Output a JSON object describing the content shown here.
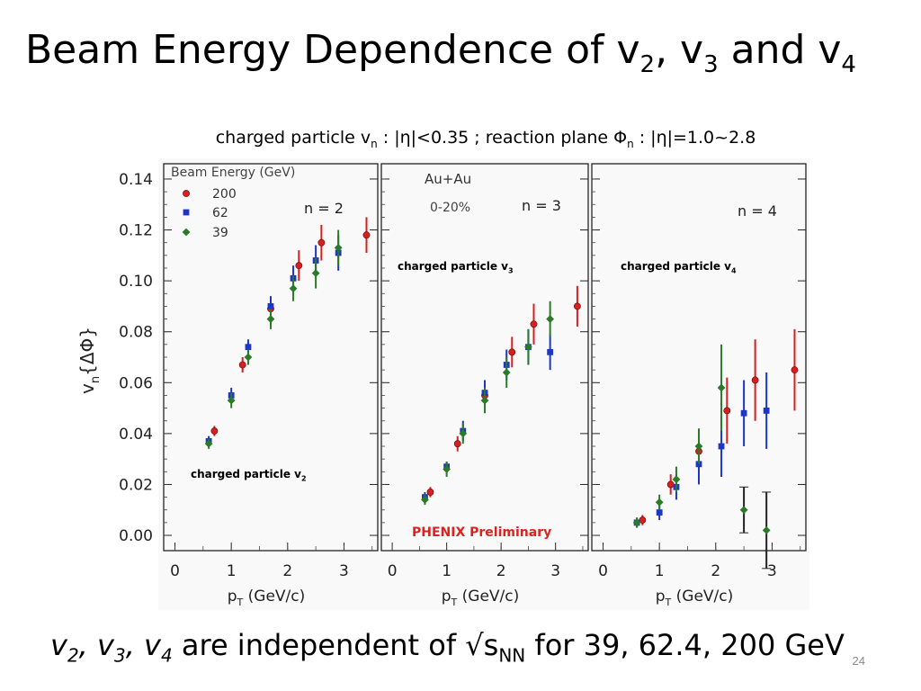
{
  "slide": {
    "title": {
      "main": "Beam Energy Dependence of v",
      "s1": "2",
      "sep": ", v",
      "s2": "3",
      "and": " and v",
      "s3": "4"
    },
    "subtitle": {
      "a": "charged particle v",
      "a_sub": "n",
      "b": " : |η|<0.35 ; reaction plane Φ",
      "b_sub": "n",
      "c": " : |η|=1.0~2.8"
    },
    "footer": {
      "v2": "v",
      "s2": "2",
      "c1": ", ",
      "v3": "v",
      "s3": "3",
      "c2": ", ",
      "v4": "v",
      "s4": "4",
      "text": " are independent of √s",
      "nn": "NN",
      "rest": " for 39, 62.4, 200 GeV"
    },
    "page_number": "24"
  },
  "panel_labels": [
    {
      "text": "charged particle v",
      "sub": "2"
    },
    {
      "text": "charged particle v",
      "sub": "3"
    },
    {
      "text": "charged particle v",
      "sub": "4"
    }
  ],
  "chart_data": {
    "type": "scatter",
    "ylabel": "vn{ΔΦ}",
    "xlabel": "pT (GeV/c)",
    "ylim": [
      -0.006,
      0.146
    ],
    "xlim": [
      -0.2,
      3.6
    ],
    "yticks": [
      "0.00",
      "0.02",
      "0.04",
      "0.06",
      "0.08",
      "0.10",
      "0.12",
      "0.14"
    ],
    "xticks": [
      "0",
      "1",
      "2",
      "3"
    ],
    "legend": {
      "title": "Beam Energy (GeV)",
      "entries": [
        "200",
        "62",
        "39"
      ]
    },
    "series_colors": {
      "200": "#d42020",
      "62": "#1f35c8",
      "39": "#2a7a2a"
    },
    "annotations": {
      "system": "Au+Au",
      "centrality": "0-20%",
      "preliminary": "PHENIX Preliminary"
    },
    "panels": [
      {
        "n_label": "n = 2",
        "series": [
          {
            "name": "200",
            "points": [
              [
                0.7,
                0.041,
                0.002
              ],
              [
                1.2,
                0.067,
                0.003
              ],
              [
                1.7,
                0.089,
                0.004
              ],
              [
                2.2,
                0.106,
                0.006
              ],
              [
                2.6,
                0.115,
                0.007
              ],
              [
                3.4,
                0.118,
                0.007
              ]
            ]
          },
          {
            "name": "62",
            "points": [
              [
                0.6,
                0.037,
                0.002
              ],
              [
                1.0,
                0.055,
                0.003
              ],
              [
                1.3,
                0.074,
                0.003
              ],
              [
                1.7,
                0.09,
                0.004
              ],
              [
                2.1,
                0.101,
                0.005
              ],
              [
                2.5,
                0.108,
                0.006
              ],
              [
                2.9,
                0.111,
                0.007
              ]
            ]
          },
          {
            "name": "39",
            "points": [
              [
                0.6,
                0.036,
                0.002
              ],
              [
                1.0,
                0.053,
                0.003
              ],
              [
                1.3,
                0.07,
                0.003
              ],
              [
                1.7,
                0.085,
                0.004
              ],
              [
                2.1,
                0.097,
                0.005
              ],
              [
                2.5,
                0.103,
                0.006
              ],
              [
                2.9,
                0.113,
                0.007
              ]
            ]
          }
        ]
      },
      {
        "n_label": "n = 3",
        "series": [
          {
            "name": "200",
            "points": [
              [
                0.7,
                0.017,
                0.002
              ],
              [
                1.2,
                0.036,
                0.003
              ],
              [
                1.7,
                0.055,
                0.004
              ],
              [
                2.2,
                0.072,
                0.006
              ],
              [
                2.6,
                0.083,
                0.008
              ],
              [
                3.4,
                0.09,
                0.008
              ]
            ]
          },
          {
            "name": "62",
            "points": [
              [
                0.6,
                0.015,
                0.002
              ],
              [
                1.0,
                0.027,
                0.002
              ],
              [
                1.3,
                0.041,
                0.004
              ],
              [
                1.7,
                0.056,
                0.005
              ],
              [
                2.1,
                0.067,
                0.006
              ],
              [
                2.5,
                0.074,
                0.007
              ],
              [
                2.9,
                0.072,
                0.007
              ]
            ]
          },
          {
            "name": "39",
            "points": [
              [
                0.6,
                0.014,
                0.002
              ],
              [
                1.0,
                0.026,
                0.003
              ],
              [
                1.3,
                0.04,
                0.004
              ],
              [
                1.7,
                0.053,
                0.005
              ],
              [
                2.1,
                0.064,
                0.006
              ],
              [
                2.5,
                0.074,
                0.007
              ],
              [
                2.9,
                0.085,
                0.007
              ]
            ]
          }
        ]
      },
      {
        "n_label": "n = 4",
        "series": [
          {
            "name": "200",
            "points": [
              [
                0.7,
                0.006,
                0.002
              ],
              [
                1.2,
                0.02,
                0.004
              ],
              [
                1.7,
                0.033,
                0.006
              ],
              [
                2.2,
                0.049,
                0.013
              ],
              [
                2.7,
                0.061,
                0.016
              ],
              [
                3.4,
                0.065,
                0.016
              ]
            ]
          },
          {
            "name": "62",
            "points": [
              [
                0.6,
                0.005,
                0.002
              ],
              [
                1.0,
                0.009,
                0.003
              ],
              [
                1.3,
                0.019,
                0.005
              ],
              [
                1.7,
                0.028,
                0.008
              ],
              [
                2.1,
                0.035,
                0.012
              ],
              [
                2.5,
                0.048,
                0.013
              ],
              [
                2.9,
                0.049,
                0.015
              ]
            ]
          },
          {
            "name": "39",
            "points": [
              [
                0.6,
                0.005,
                0.002
              ],
              [
                1.0,
                0.013,
                0.003
              ],
              [
                1.3,
                0.022,
                0.005
              ],
              [
                1.7,
                0.035,
                0.007
              ],
              [
                2.1,
                0.058,
                0.017
              ],
              [
                2.5,
                0.01,
                0.009
              ],
              [
                2.9,
                0.002,
                0.015
              ]
            ]
          }
        ]
      }
    ]
  }
}
